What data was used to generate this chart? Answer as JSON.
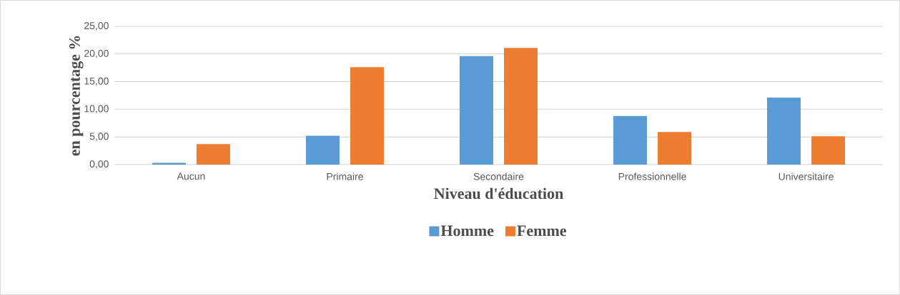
{
  "chart_data": {
    "type": "bar",
    "xlabel": "Niveau d'éducation",
    "ylabel": "en pourcentage %",
    "categories": [
      "Aucun",
      "Primaire",
      "Secondaire",
      "Professionnelle",
      "Universitaire"
    ],
    "series": [
      {
        "name": "Homme",
        "color": "#5b9bd5",
        "values": [
          0.3,
          5.2,
          19.6,
          8.8,
          12.1
        ]
      },
      {
        "name": "Femme",
        "color": "#ed7d31",
        "values": [
          3.7,
          17.6,
          21.1,
          5.9,
          5.1
        ]
      }
    ],
    "ylim": [
      0,
      25
    ],
    "yticks": [
      {
        "value": 0,
        "label": "0,00"
      },
      {
        "value": 5,
        "label": "5,00"
      },
      {
        "value": 10,
        "label": "10,00"
      },
      {
        "value": 15,
        "label": "15,00"
      },
      {
        "value": 20,
        "label": "20,00"
      },
      {
        "value": 25,
        "label": "25,00"
      }
    ],
    "grid": "y",
    "legend": "bottom"
  }
}
